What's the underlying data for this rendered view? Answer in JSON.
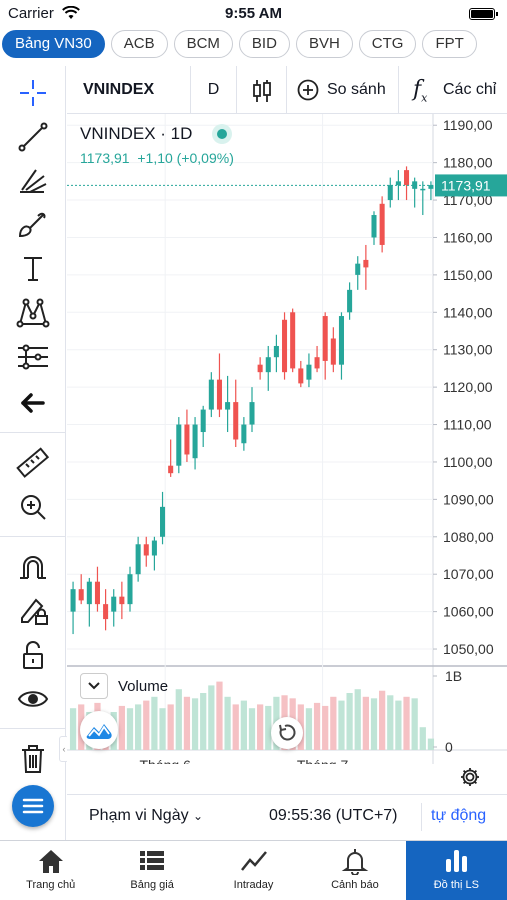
{
  "status": {
    "carrier": "Carrier",
    "time": "9:55 AM"
  },
  "tabs": [
    "Bảng VN30",
    "ACB",
    "BCM",
    "BID",
    "BVH",
    "CTG",
    "FPT"
  ],
  "topbar": {
    "symbol": "VNINDEX",
    "interval": "D",
    "compare": "So sánh",
    "indicators": "Các chỉ"
  },
  "legend": {
    "title": "VNINDEX · 1D",
    "price": "1173,91",
    "change": "+1,10 (+0,09%)"
  },
  "chart_data": {
    "type": "candlestick",
    "y_ticks": [
      "1190,00",
      "1180,00",
      "1170,00",
      "1160,00",
      "1150,00",
      "1140,00",
      "1130,00",
      "1120,00",
      "1110,00",
      "1100,00",
      "1090,00",
      "1080,00",
      "1070,00",
      "1060,00",
      "1050,00"
    ],
    "ylim": [
      1046,
      1193
    ],
    "last_price_label": "1173,91",
    "last_price": 1173.91,
    "x_labels": [
      "Tháng 6",
      "Tháng 7"
    ],
    "volume_label": "Volume",
    "volume_ticks": [
      "1B",
      "0"
    ],
    "candles": [
      {
        "o": 1060,
        "h": 1068,
        "l": 1054,
        "c": 1066
      },
      {
        "o": 1066,
        "h": 1070,
        "l": 1062,
        "c": 1063
      },
      {
        "o": 1062,
        "h": 1069,
        "l": 1056,
        "c": 1068
      },
      {
        "o": 1068,
        "h": 1072,
        "l": 1060,
        "c": 1062
      },
      {
        "o": 1062,
        "h": 1066,
        "l": 1055,
        "c": 1058
      },
      {
        "o": 1060,
        "h": 1066,
        "l": 1056,
        "c": 1064
      },
      {
        "o": 1064,
        "h": 1068,
        "l": 1058,
        "c": 1062
      },
      {
        "o": 1062,
        "h": 1072,
        "l": 1060,
        "c": 1070
      },
      {
        "o": 1070,
        "h": 1080,
        "l": 1068,
        "c": 1078
      },
      {
        "o": 1078,
        "h": 1080,
        "l": 1072,
        "c": 1075
      },
      {
        "o": 1075,
        "h": 1080,
        "l": 1071,
        "c": 1079
      },
      {
        "o": 1080,
        "h": 1092,
        "l": 1078,
        "c": 1088
      },
      {
        "o": 1099,
        "h": 1106,
        "l": 1096,
        "c": 1097
      },
      {
        "o": 1099,
        "h": 1112,
        "l": 1097,
        "c": 1110
      },
      {
        "o": 1110,
        "h": 1114,
        "l": 1100,
        "c": 1102
      },
      {
        "o": 1101,
        "h": 1112,
        "l": 1098,
        "c": 1110
      },
      {
        "o": 1108,
        "h": 1115,
        "l": 1104,
        "c": 1114
      },
      {
        "o": 1114,
        "h": 1124,
        "l": 1112,
        "c": 1122
      },
      {
        "o": 1122,
        "h": 1129,
        "l": 1112,
        "c": 1114
      },
      {
        "o": 1114,
        "h": 1123,
        "l": 1108,
        "c": 1116
      },
      {
        "o": 1116,
        "h": 1122,
        "l": 1104,
        "c": 1106
      },
      {
        "o": 1105,
        "h": 1112,
        "l": 1103,
        "c": 1110
      },
      {
        "o": 1110,
        "h": 1120,
        "l": 1108,
        "c": 1116
      },
      {
        "o": 1126,
        "h": 1128,
        "l": 1122,
        "c": 1124
      },
      {
        "o": 1124,
        "h": 1131,
        "l": 1119,
        "c": 1128
      },
      {
        "o": 1128,
        "h": 1134,
        "l": 1124,
        "c": 1131
      },
      {
        "o": 1138,
        "h": 1140,
        "l": 1122,
        "c": 1124
      },
      {
        "o": 1140,
        "h": 1141,
        "l": 1124,
        "c": 1125
      },
      {
        "o": 1125,
        "h": 1127,
        "l": 1120,
        "c": 1121
      },
      {
        "o": 1122,
        "h": 1129,
        "l": 1120,
        "c": 1126
      },
      {
        "o": 1128,
        "h": 1131,
        "l": 1124,
        "c": 1125
      },
      {
        "o": 1139,
        "h": 1140,
        "l": 1122,
        "c": 1127
      },
      {
        "o": 1133,
        "h": 1136,
        "l": 1124,
        "c": 1126
      },
      {
        "o": 1126,
        "h": 1140,
        "l": 1122,
        "c": 1139
      },
      {
        "o": 1140,
        "h": 1148,
        "l": 1138,
        "c": 1146
      },
      {
        "o": 1150,
        "h": 1155,
        "l": 1146,
        "c": 1153
      },
      {
        "o": 1154,
        "h": 1158,
        "l": 1146,
        "c": 1152
      },
      {
        "o": 1160,
        "h": 1167,
        "l": 1158,
        "c": 1166
      },
      {
        "o": 1169,
        "h": 1171,
        "l": 1156,
        "c": 1158
      },
      {
        "o": 1170,
        "h": 1176,
        "l": 1168,
        "c": 1174
      },
      {
        "o": 1174,
        "h": 1178,
        "l": 1170,
        "c": 1175
      },
      {
        "o": 1178,
        "h": 1179,
        "l": 1170,
        "c": 1174
      },
      {
        "o": 1173,
        "h": 1176,
        "l": 1168,
        "c": 1175
      },
      {
        "o": 1173,
        "h": 1175,
        "l": 1166,
        "c": 1173
      },
      {
        "o": 1173,
        "h": 1175,
        "l": 1170,
        "c": 1174
      }
    ],
    "volumes": [
      0.55,
      0.6,
      0.5,
      0.62,
      0.45,
      0.5,
      0.58,
      0.55,
      0.6,
      0.65,
      0.7,
      0.55,
      0.6,
      0.8,
      0.7,
      0.68,
      0.75,
      0.85,
      0.9,
      0.7,
      0.6,
      0.65,
      0.55,
      0.6,
      0.58,
      0.7,
      0.72,
      0.68,
      0.6,
      0.55,
      0.62,
      0.58,
      0.7,
      0.65,
      0.75,
      0.8,
      0.7,
      0.68,
      0.78,
      0.72,
      0.65,
      0.7,
      0.68,
      0.3,
      0.15
    ]
  },
  "bottom": {
    "range": "Phạm vi Ngày",
    "clock": "09:55:36 (UTC+7)",
    "auto": "tự động"
  },
  "nav": [
    {
      "label": "Trang chủ",
      "icon": "home-icon"
    },
    {
      "label": "Bảng giá",
      "icon": "list-icon"
    },
    {
      "label": "Intraday",
      "icon": "line-chart-icon"
    },
    {
      "label": "Cảnh báo",
      "icon": "bell-icon"
    },
    {
      "label": "Đồ thị LS",
      "icon": "bar-chart-icon"
    }
  ],
  "colors": {
    "up": "#26a69a",
    "down": "#ef5350",
    "accent": "#1565c0",
    "up_vol": "#bfe4d6",
    "down_vol": "#f5c1c4"
  }
}
